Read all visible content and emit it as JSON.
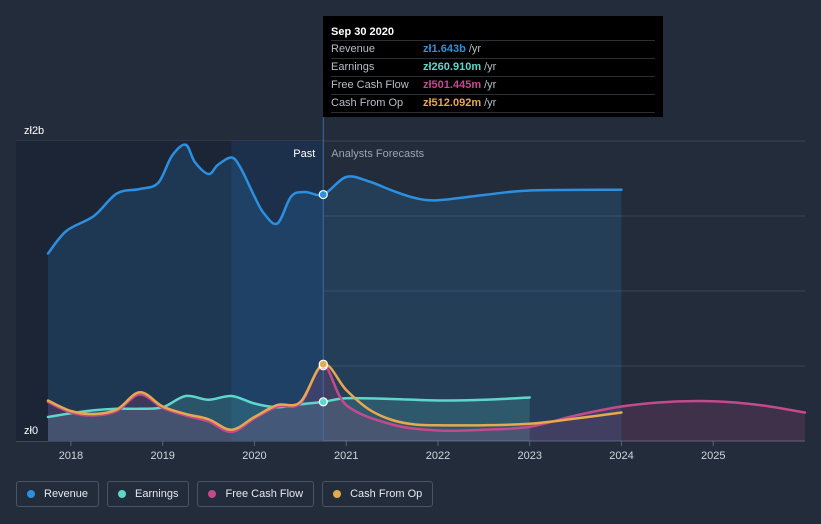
{
  "chart_data": {
    "type": "area",
    "y_axis": {
      "top_label": "zł2b",
      "bottom_label": "zł0",
      "ylim": [
        0,
        2000
      ]
    },
    "x_ticks": [
      "2018",
      "2019",
      "2020",
      "2021",
      "2022",
      "2023",
      "2024",
      "2025"
    ],
    "x_domain": [
      2017.75,
      2026.0
    ],
    "divider_x": 2020.75,
    "past_label": "Past",
    "forecast_label": "Analysts Forecasts",
    "series": [
      {
        "name": "Revenue",
        "color": "#2d8fe0",
        "fill": true,
        "points": [
          [
            2017.75,
            1250
          ],
          [
            2017.95,
            1400
          ],
          [
            2018.25,
            1500
          ],
          [
            2018.5,
            1650
          ],
          [
            2018.75,
            1680
          ],
          [
            2018.95,
            1720
          ],
          [
            2019.1,
            1900
          ],
          [
            2019.25,
            1975
          ],
          [
            2019.35,
            1860
          ],
          [
            2019.5,
            1780
          ],
          [
            2019.6,
            1840
          ],
          [
            2019.75,
            1890
          ],
          [
            2019.85,
            1820
          ],
          [
            2020.0,
            1630
          ],
          [
            2020.1,
            1520
          ],
          [
            2020.25,
            1450
          ],
          [
            2020.4,
            1630
          ],
          [
            2020.55,
            1660
          ],
          [
            2020.75,
            1643
          ],
          [
            2021.0,
            1760
          ],
          [
            2021.25,
            1730
          ],
          [
            2021.5,
            1670
          ],
          [
            2021.75,
            1620
          ],
          [
            2022.0,
            1605
          ],
          [
            2022.5,
            1640
          ],
          [
            2023.0,
            1670
          ],
          [
            2024.0,
            1675
          ]
        ]
      },
      {
        "name": "Earnings",
        "color": "#5fd6cc",
        "fill": true,
        "points": [
          [
            2017.75,
            160
          ],
          [
            2018.0,
            185
          ],
          [
            2018.25,
            205
          ],
          [
            2018.5,
            215
          ],
          [
            2018.75,
            215
          ],
          [
            2019.0,
            225
          ],
          [
            2019.25,
            300
          ],
          [
            2019.5,
            275
          ],
          [
            2019.75,
            300
          ],
          [
            2020.0,
            250
          ],
          [
            2020.25,
            225
          ],
          [
            2020.5,
            245
          ],
          [
            2020.75,
            260.9
          ],
          [
            2021.0,
            285
          ],
          [
            2021.5,
            280
          ],
          [
            2022.0,
            270
          ],
          [
            2022.5,
            275
          ],
          [
            2023.0,
            290
          ]
        ]
      },
      {
        "name": "Free Cash Flow",
        "color": "#c34a8c",
        "fill": true,
        "points": [
          [
            2017.75,
            260
          ],
          [
            2018.0,
            190
          ],
          [
            2018.25,
            170
          ],
          [
            2018.5,
            200
          ],
          [
            2018.75,
            310
          ],
          [
            2019.0,
            220
          ],
          [
            2019.25,
            170
          ],
          [
            2019.5,
            130
          ],
          [
            2019.75,
            60
          ],
          [
            2020.0,
            150
          ],
          [
            2020.25,
            230
          ],
          [
            2020.5,
            250
          ],
          [
            2020.75,
            501.4
          ],
          [
            2021.0,
            240
          ],
          [
            2021.5,
            110
          ],
          [
            2022.0,
            70
          ],
          [
            2022.5,
            75
          ],
          [
            2023.0,
            95
          ],
          [
            2023.5,
            170
          ],
          [
            2024.0,
            230
          ],
          [
            2024.5,
            260
          ],
          [
            2025.0,
            265
          ],
          [
            2025.5,
            240
          ],
          [
            2026.0,
            190
          ]
        ]
      },
      {
        "name": "Cash From Op",
        "color": "#e6a94e",
        "fill": false,
        "points": [
          [
            2017.75,
            270
          ],
          [
            2018.0,
            200
          ],
          [
            2018.25,
            180
          ],
          [
            2018.5,
            210
          ],
          [
            2018.75,
            325
          ],
          [
            2019.0,
            230
          ],
          [
            2019.25,
            180
          ],
          [
            2019.5,
            145
          ],
          [
            2019.75,
            75
          ],
          [
            2020.0,
            160
          ],
          [
            2020.25,
            240
          ],
          [
            2020.5,
            260
          ],
          [
            2020.75,
            512.1
          ],
          [
            2021.0,
            340
          ],
          [
            2021.25,
            210
          ],
          [
            2021.5,
            140
          ],
          [
            2021.75,
            110
          ],
          [
            2022.0,
            105
          ],
          [
            2022.5,
            105
          ],
          [
            2023.0,
            115
          ],
          [
            2023.5,
            150
          ],
          [
            2024.0,
            190
          ]
        ]
      }
    ]
  },
  "tooltip": {
    "date": "Sep 30 2020",
    "rows": [
      {
        "name": "Revenue",
        "value": "zł1.643b",
        "unit": "/yr",
        "color": "#2d8fe0"
      },
      {
        "name": "Earnings",
        "value": "zł260.910m",
        "unit": "/yr",
        "color": "#5fd6cc"
      },
      {
        "name": "Free Cash Flow",
        "value": "zł501.445m",
        "unit": "/yr",
        "color": "#c34a8c"
      },
      {
        "name": "Cash From Op",
        "value": "zł512.092m",
        "unit": "/yr",
        "color": "#e6a94e"
      }
    ]
  },
  "legend": [
    {
      "label": "Revenue",
      "color": "#2d8fe0"
    },
    {
      "label": "Earnings",
      "color": "#5fd6cc"
    },
    {
      "label": "Free Cash Flow",
      "color": "#c34a8c"
    },
    {
      "label": "Cash From Op",
      "color": "#e6a94e"
    }
  ]
}
